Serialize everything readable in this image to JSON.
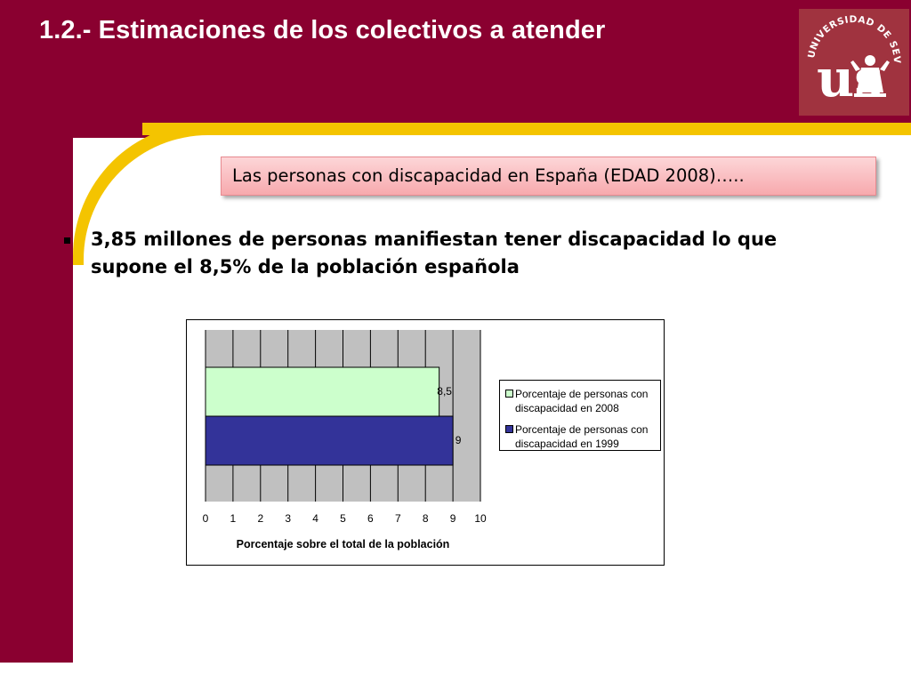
{
  "slide": {
    "title": "1.2.- Estimaciones de los colectivos a atender",
    "subtitle": "Las personas con discapacidad en España (EDAD 2008)…..",
    "bullet": "3,85 millones de personas manifiestan tener discapacidad lo que supone el 8,5% de la población española",
    "logo": {
      "icon": "universidad-de-sevilla-seal",
      "text": "UNIVERSIDAD DE SEVILLA",
      "monogram": "us"
    }
  },
  "colors": {
    "brand": "#8a0030",
    "accent": "#f4c400",
    "box_fill": "#f9b9bc",
    "series_2008": "#ccffcc",
    "series_1999": "#333399",
    "plot_bg": "#c0c0c0"
  },
  "chart_data": {
    "type": "bar",
    "orientation": "horizontal",
    "xlabel": "Porcentaje sobre el total de la población",
    "xlim": [
      0,
      10
    ],
    "xticks": [
      "0",
      "1",
      "2",
      "3",
      "4",
      "5",
      "6",
      "7",
      "8",
      "9",
      "10"
    ],
    "grid": "vertical",
    "legend_position": "right",
    "series": [
      {
        "name": "Porcentaje de personas con discapacidad en 2008",
        "values": [
          8.5
        ],
        "label": "8,5",
        "color": "#ccffcc"
      },
      {
        "name": "Porcentaje de personas con discapacidad en 1999",
        "values": [
          9
        ],
        "label": "9",
        "color": "#333399"
      }
    ]
  }
}
